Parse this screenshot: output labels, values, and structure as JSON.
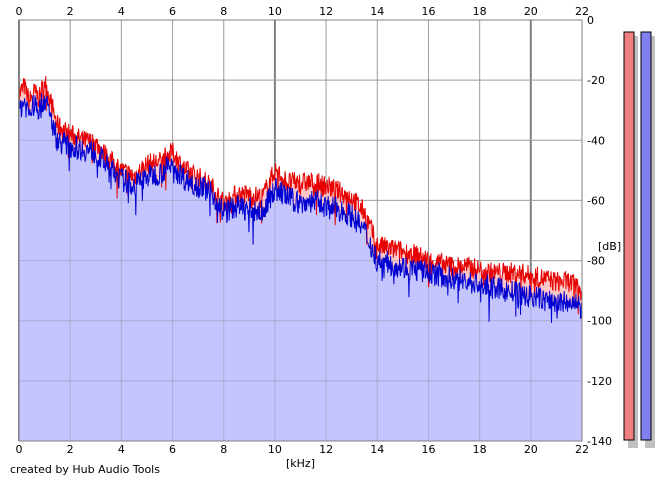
{
  "credit": "created by Hub Audio Tools",
  "chart_data": {
    "type": "area",
    "xlabel": "[kHz]",
    "ylabel": "[dB]",
    "xlim": [
      0,
      22
    ],
    "ylim": [
      -140,
      0
    ],
    "xticks": [
      0,
      2,
      4,
      6,
      8,
      10,
      12,
      14,
      16,
      18,
      20,
      22
    ],
    "yticks": [
      0,
      -20,
      -40,
      -60,
      -80,
      -100,
      -120,
      -140
    ],
    "grid": true,
    "series": [
      {
        "color": "#e60000",
        "fill": "#ffc8c8",
        "x": [
          0,
          0.2,
          0.4,
          0.6,
          0.8,
          1.0,
          1.5,
          2,
          2.5,
          3,
          3.5,
          4,
          4.5,
          5,
          5.5,
          6,
          6.5,
          7,
          7.5,
          8,
          8.5,
          9,
          9.5,
          10,
          10.5,
          11,
          11.5,
          12,
          12.5,
          13,
          13.5,
          14,
          14.5,
          15,
          15.5,
          16,
          16.5,
          17,
          17.5,
          18,
          18.5,
          19,
          19.5,
          20,
          20.5,
          21,
          21.5,
          22
        ],
        "values": [
          -25,
          -22,
          -27,
          -24,
          -26,
          -20,
          -35,
          -38,
          -40,
          -41,
          -46,
          -50,
          -52,
          -48,
          -47,
          -44,
          -50,
          -52,
          -55,
          -61,
          -58,
          -58,
          -59,
          -50,
          -54,
          -54,
          -54,
          -55,
          -57,
          -59,
          -64,
          -75,
          -76,
          -77,
          -78,
          -80,
          -81,
          -82,
          -82,
          -83,
          -84,
          -84,
          -84,
          -85,
          -86,
          -87,
          -87,
          -90
        ]
      },
      {
        "color": "#0000d0",
        "fill": "#c4c4ff",
        "x": [
          0,
          0.2,
          0.4,
          0.6,
          0.8,
          1.0,
          1.5,
          2,
          2.5,
          3,
          3.5,
          4,
          4.5,
          5,
          5.5,
          6,
          6.5,
          7,
          7.5,
          8,
          8.5,
          9,
          9.5,
          10,
          10.5,
          11,
          11.5,
          12,
          12.5,
          13,
          13.5,
          14,
          14.5,
          15,
          15.5,
          16,
          16.5,
          17,
          17.5,
          18,
          18.5,
          19,
          19.5,
          20,
          20.5,
          21,
          21.5,
          22
        ],
        "values": [
          -30,
          -27,
          -31,
          -28,
          -30,
          -26,
          -40,
          -42,
          -43,
          -44,
          -49,
          -53,
          -55,
          -52,
          -51,
          -48,
          -53,
          -55,
          -57,
          -64,
          -62,
          -63,
          -64,
          -56,
          -59,
          -61,
          -60,
          -62,
          -63,
          -65,
          -70,
          -80,
          -81,
          -82,
          -83,
          -84,
          -85,
          -86,
          -87,
          -88,
          -89,
          -90,
          -91,
          -92,
          -93,
          -94,
          -94,
          -96
        ]
      }
    ],
    "level_meters": [
      {
        "color": "#f08080"
      },
      {
        "color": "#8080f0"
      }
    ]
  }
}
